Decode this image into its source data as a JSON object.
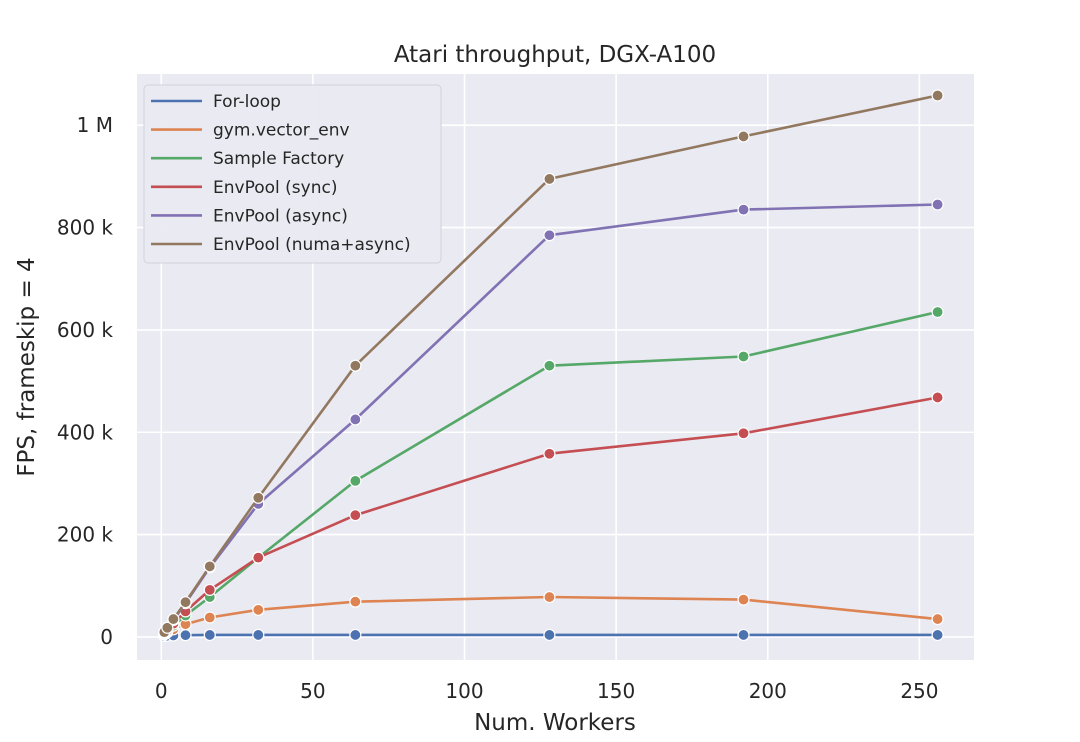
{
  "chart_data": {
    "type": "line",
    "title": "Atari throughput, DGX-A100",
    "xlabel": "Num. Workers",
    "ylabel": "FPS, frameskip = 4",
    "xlim": [
      -8,
      268
    ],
    "ylim": [
      -45000,
      1100000
    ],
    "x_ticks": [
      {
        "value": 0,
        "label": "0"
      },
      {
        "value": 50,
        "label": "50"
      },
      {
        "value": 100,
        "label": "100"
      },
      {
        "value": 150,
        "label": "150"
      },
      {
        "value": 200,
        "label": "200"
      },
      {
        "value": 250,
        "label": "250"
      }
    ],
    "y_ticks": [
      {
        "value": 0,
        "label": "0"
      },
      {
        "value": 200000,
        "label": "200 k"
      },
      {
        "value": 400000,
        "label": "400 k"
      },
      {
        "value": 600000,
        "label": "600 k"
      },
      {
        "value": 800000,
        "label": "800 k"
      },
      {
        "value": 1000000,
        "label": "1 M"
      }
    ],
    "grid": true,
    "legend_position": "top-left",
    "series": [
      {
        "name": "For-loop",
        "color": "#4c72b0",
        "x": [
          1,
          2,
          4,
          8,
          16,
          32,
          64,
          128,
          192,
          256
        ],
        "y": [
          2000,
          2500,
          3000,
          3500,
          4000,
          4000,
          4000,
          4000,
          4000,
          4000
        ]
      },
      {
        "name": "gym.vector_env",
        "color": "#dd8452",
        "x": [
          1,
          2,
          4,
          8,
          16,
          32,
          64,
          128,
          192,
          256
        ],
        "y": [
          5000,
          9000,
          15000,
          25000,
          38000,
          53000,
          69000,
          78000,
          73000,
          35000
        ]
      },
      {
        "name": "Sample Factory",
        "color": "#55a868",
        "x": [
          1,
          2,
          4,
          8,
          16,
          32,
          64,
          128,
          192,
          256
        ],
        "y": [
          6000,
          11000,
          22000,
          42000,
          78000,
          155000,
          305000,
          530000,
          548000,
          635000
        ]
      },
      {
        "name": "EnvPool (sync)",
        "color": "#c44e52",
        "x": [
          1,
          2,
          4,
          8,
          16,
          32,
          64,
          128,
          192,
          256
        ],
        "y": [
          7000,
          13000,
          26000,
          50000,
          92000,
          155000,
          238000,
          358000,
          398000,
          468000
        ]
      },
      {
        "name": "EnvPool (async)",
        "color": "#8172b3",
        "x": [
          1,
          2,
          4,
          8,
          16,
          32,
          64,
          128,
          192,
          256
        ],
        "y": [
          9000,
          17000,
          33000,
          66000,
          136000,
          260000,
          425000,
          785000,
          835000,
          845000
        ]
      },
      {
        "name": "EnvPool (numa+async)",
        "color": "#937860",
        "x": [
          1,
          2,
          4,
          8,
          16,
          32,
          64,
          128,
          192,
          256
        ],
        "y": [
          9500,
          18000,
          35000,
          68000,
          138000,
          272000,
          530000,
          895000,
          978000,
          1058000
        ]
      }
    ]
  }
}
